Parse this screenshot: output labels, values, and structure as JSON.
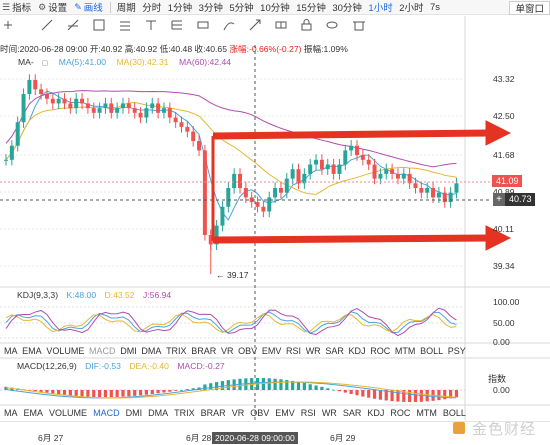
{
  "toolbar": {
    "indicators": "指标",
    "settings": "设置",
    "draw": "画线",
    "period": "周期",
    "periods": [
      "分时",
      "1分钟",
      "3分钟",
      "5分钟",
      "10分钟",
      "15分钟",
      "30分钟",
      "1小时",
      "2小时",
      "7s"
    ],
    "active_period": "1小时",
    "window_button": "单窗口"
  },
  "ohlc_bar": {
    "time": "时间:2020-06-28 09:00",
    "open": "开:40.92",
    "high": "高:40.92",
    "low": "低:40.48",
    "close": "收:40.65",
    "change": "涨幅:-0.66%(-0.27)",
    "amplitude": "振幅:1.09%"
  },
  "ma_legend": {
    "label": "MA-",
    "ma5": "MA(5):41.00",
    "ma30": "MA(30):42.31",
    "ma60": "MA(60):42.44"
  },
  "price_axis": [
    "43.32",
    "42.50",
    "41.68",
    "40.89",
    "40.11",
    "39.34"
  ],
  "current_price": "41.09",
  "crosshair_price": "40.73",
  "low_annotation": "← 39.17",
  "kdj": {
    "label": "KDJ(9,3,3)",
    "k": "K:48.00",
    "d": "D:43.52",
    "j": "J:56.94",
    "axis": [
      "100.00",
      "50.00",
      "0.00"
    ]
  },
  "indicator_tabs": [
    "MA",
    "EMA",
    "VOLUME",
    "MACD",
    "DMI",
    "DMA",
    "TRIX",
    "BRAR",
    "VR",
    "OBV",
    "EMV",
    "RSI",
    "WR",
    "SAR",
    "KDJ",
    "ROC",
    "MTM",
    "BOLL",
    "PSY"
  ],
  "macd": {
    "label": "MACD(12,26,9)",
    "dif": "DIF:-0.53",
    "dea": "DEA:-0.40",
    "macd": "MACD:-0.27",
    "axis": [
      "0.00"
    ]
  },
  "right_link": "指数",
  "bottom_tabs": [
    "MA",
    "EMA",
    "VOLUME",
    "MACD",
    "DMI",
    "DMA",
    "TRIX",
    "BRAR",
    "VR",
    "OBV",
    "EMV",
    "RSI",
    "WR",
    "SAR",
    "KDJ",
    "ROC",
    "MTM",
    "BOLL"
  ],
  "dates": {
    "d1": "6月 27",
    "d2": "6月 28",
    "highlight": "2020-06-28 09:00:00",
    "d3": "6月 29"
  },
  "watermark": "金色财经",
  "colors": {
    "up": "#26a69a",
    "down": "#ef5350",
    "ma5": "#4aa3df",
    "ma30": "#e5b830",
    "ma60": "#b04cb0",
    "arrow": "#e53322",
    "accent": "#1e6ad8"
  }
}
